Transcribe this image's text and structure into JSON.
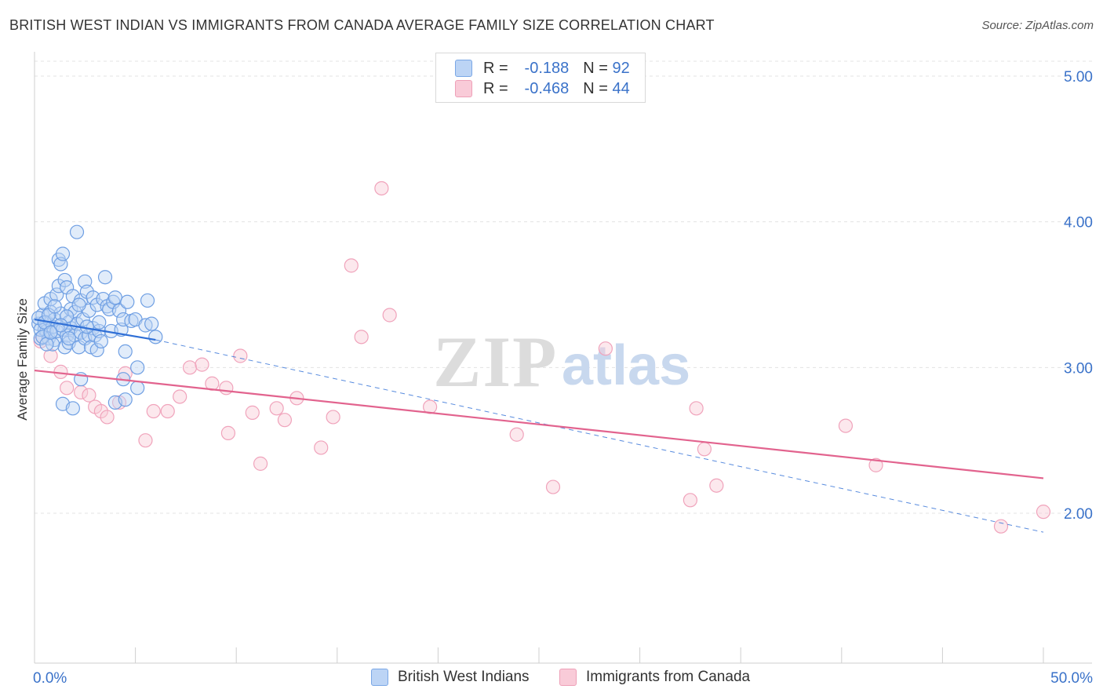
{
  "header": {
    "title": "BRITISH WEST INDIAN VS IMMIGRANTS FROM CANADA AVERAGE FAMILY SIZE CORRELATION CHART",
    "source": "Source: ZipAtlas.com"
  },
  "legend": {
    "r_label": "R =",
    "n_label": "N =",
    "series1": {
      "r": "-0.188",
      "n": "92"
    },
    "series2": {
      "r": "-0.468",
      "n": "44"
    }
  },
  "bottom_legend": {
    "series1": "British West Indians",
    "series2": "Immigrants from Canada"
  },
  "watermark": {
    "zip": "ZIP",
    "atlas": "atlas"
  },
  "chart_data": {
    "type": "scatter",
    "title": "BRITISH WEST INDIAN VS IMMIGRANTS FROM CANADA AVERAGE FAMILY SIZE CORRELATION CHART",
    "xlabel": "",
    "ylabel": "Average Family Size",
    "xlim": [
      0,
      50
    ],
    "ylim": [
      1.0,
      5.15
    ],
    "x_tick_labels": [
      "0.0%",
      "50.0%"
    ],
    "y_ticks": [
      2.0,
      3.0,
      4.0,
      5.0
    ],
    "y_tick_labels": [
      "2.00",
      "3.00",
      "4.00",
      "5.00"
    ],
    "grid": true,
    "colors": {
      "series1": "#6f9fe3",
      "series2": "#f0a3bb",
      "line1": "#2f6fd6",
      "line2": "#e2638e"
    },
    "series": [
      {
        "name": "British West Indians",
        "trend": {
          "x": [
            0,
            6.0
          ],
          "y": [
            3.33,
            3.19
          ],
          "extended_x": [
            50
          ],
          "extended_y": [
            1.87
          ]
        },
        "points": [
          [
            0.2,
            3.3
          ],
          [
            0.3,
            3.2
          ],
          [
            0.4,
            3.36
          ],
          [
            0.5,
            3.44
          ],
          [
            0.5,
            3.26
          ],
          [
            0.6,
            3.31
          ],
          [
            0.6,
            3.25
          ],
          [
            0.7,
            3.2
          ],
          [
            0.8,
            3.38
          ],
          [
            0.8,
            3.47
          ],
          [
            0.9,
            3.28
          ],
          [
            1.0,
            3.33
          ],
          [
            1.0,
            3.19
          ],
          [
            1.1,
            3.25
          ],
          [
            1.1,
            3.5
          ],
          [
            1.2,
            3.56
          ],
          [
            1.2,
            3.74
          ],
          [
            1.3,
            3.71
          ],
          [
            1.3,
            3.37
          ],
          [
            1.4,
            3.78
          ],
          [
            1.4,
            3.26
          ],
          [
            1.5,
            3.14
          ],
          [
            1.5,
            3.6
          ],
          [
            1.6,
            3.22
          ],
          [
            1.6,
            3.55
          ],
          [
            1.7,
            3.31
          ],
          [
            1.7,
            3.17
          ],
          [
            1.8,
            3.4
          ],
          [
            1.8,
            3.27
          ],
          [
            1.9,
            3.49
          ],
          [
            2.0,
            3.38
          ],
          [
            2.0,
            3.22
          ],
          [
            2.1,
            3.93
          ],
          [
            2.1,
            3.3
          ],
          [
            2.2,
            3.14
          ],
          [
            2.3,
            3.24
          ],
          [
            2.3,
            3.46
          ],
          [
            2.4,
            3.33
          ],
          [
            2.5,
            3.2
          ],
          [
            2.5,
            3.59
          ],
          [
            2.6,
            3.52
          ],
          [
            2.7,
            3.22
          ],
          [
            2.7,
            3.39
          ],
          [
            2.8,
            3.14
          ],
          [
            2.9,
            3.27
          ],
          [
            2.9,
            3.48
          ],
          [
            3.0,
            3.22
          ],
          [
            3.1,
            3.43
          ],
          [
            3.1,
            3.12
          ],
          [
            3.2,
            3.25
          ],
          [
            3.3,
            3.18
          ],
          [
            3.4,
            3.47
          ],
          [
            3.5,
            3.62
          ],
          [
            3.6,
            3.42
          ],
          [
            3.7,
            3.4
          ],
          [
            3.8,
            3.25
          ],
          [
            3.9,
            3.45
          ],
          [
            4.0,
            3.48
          ],
          [
            4.2,
            3.39
          ],
          [
            4.3,
            3.26
          ],
          [
            4.4,
            3.33
          ],
          [
            4.5,
            3.11
          ],
          [
            4.6,
            3.45
          ],
          [
            4.8,
            3.32
          ],
          [
            5.0,
            3.33
          ],
          [
            5.5,
            3.29
          ],
          [
            5.8,
            3.3
          ],
          [
            6.0,
            3.21
          ],
          [
            5.1,
            3.0
          ],
          [
            5.1,
            2.86
          ],
          [
            4.4,
            2.92
          ],
          [
            2.3,
            2.92
          ],
          [
            1.4,
            2.75
          ],
          [
            1.9,
            2.72
          ],
          [
            4.0,
            2.76
          ],
          [
            4.5,
            2.78
          ],
          [
            0.3,
            3.26
          ],
          [
            0.9,
            3.16
          ],
          [
            1.6,
            3.35
          ],
          [
            2.2,
            3.43
          ],
          [
            0.2,
            3.34
          ],
          [
            0.5,
            3.31
          ],
          [
            0.7,
            3.36
          ],
          [
            0.4,
            3.21
          ],
          [
            1.0,
            3.42
          ],
          [
            1.3,
            3.29
          ],
          [
            0.6,
            3.16
          ],
          [
            0.8,
            3.24
          ],
          [
            5.6,
            3.46
          ],
          [
            3.2,
            3.31
          ],
          [
            2.6,
            3.28
          ],
          [
            1.7,
            3.2
          ]
        ]
      },
      {
        "name": "Immigrants from Canada",
        "trend": {
          "x": [
            0,
            50
          ],
          "y": [
            2.98,
            2.24
          ]
        },
        "points": [
          [
            0.3,
            3.18
          ],
          [
            0.8,
            3.08
          ],
          [
            1.3,
            2.97
          ],
          [
            1.6,
            2.86
          ],
          [
            2.3,
            2.83
          ],
          [
            2.7,
            2.81
          ],
          [
            3.0,
            2.73
          ],
          [
            3.3,
            2.7
          ],
          [
            3.6,
            2.66
          ],
          [
            4.2,
            2.76
          ],
          [
            4.5,
            2.96
          ],
          [
            5.5,
            2.5
          ],
          [
            5.9,
            2.7
          ],
          [
            6.6,
            2.7
          ],
          [
            7.2,
            2.8
          ],
          [
            7.7,
            3.0
          ],
          [
            8.3,
            3.02
          ],
          [
            8.8,
            2.89
          ],
          [
            9.5,
            2.86
          ],
          [
            9.6,
            2.55
          ],
          [
            10.2,
            3.08
          ],
          [
            10.8,
            2.69
          ],
          [
            11.2,
            2.34
          ],
          [
            12.0,
            2.72
          ],
          [
            12.4,
            2.64
          ],
          [
            13.0,
            2.79
          ],
          [
            14.2,
            2.45
          ],
          [
            14.8,
            2.66
          ],
          [
            15.7,
            3.7
          ],
          [
            16.2,
            3.21
          ],
          [
            17.2,
            4.23
          ],
          [
            17.6,
            3.36
          ],
          [
            19.6,
            2.73
          ],
          [
            23.9,
            2.54
          ],
          [
            25.7,
            2.18
          ],
          [
            28.3,
            3.13
          ],
          [
            32.5,
            2.09
          ],
          [
            32.8,
            2.72
          ],
          [
            33.2,
            2.44
          ],
          [
            33.8,
            2.19
          ],
          [
            40.2,
            2.6
          ],
          [
            41.7,
            2.33
          ],
          [
            47.9,
            1.91
          ],
          [
            50.0,
            2.01
          ]
        ]
      }
    ]
  }
}
